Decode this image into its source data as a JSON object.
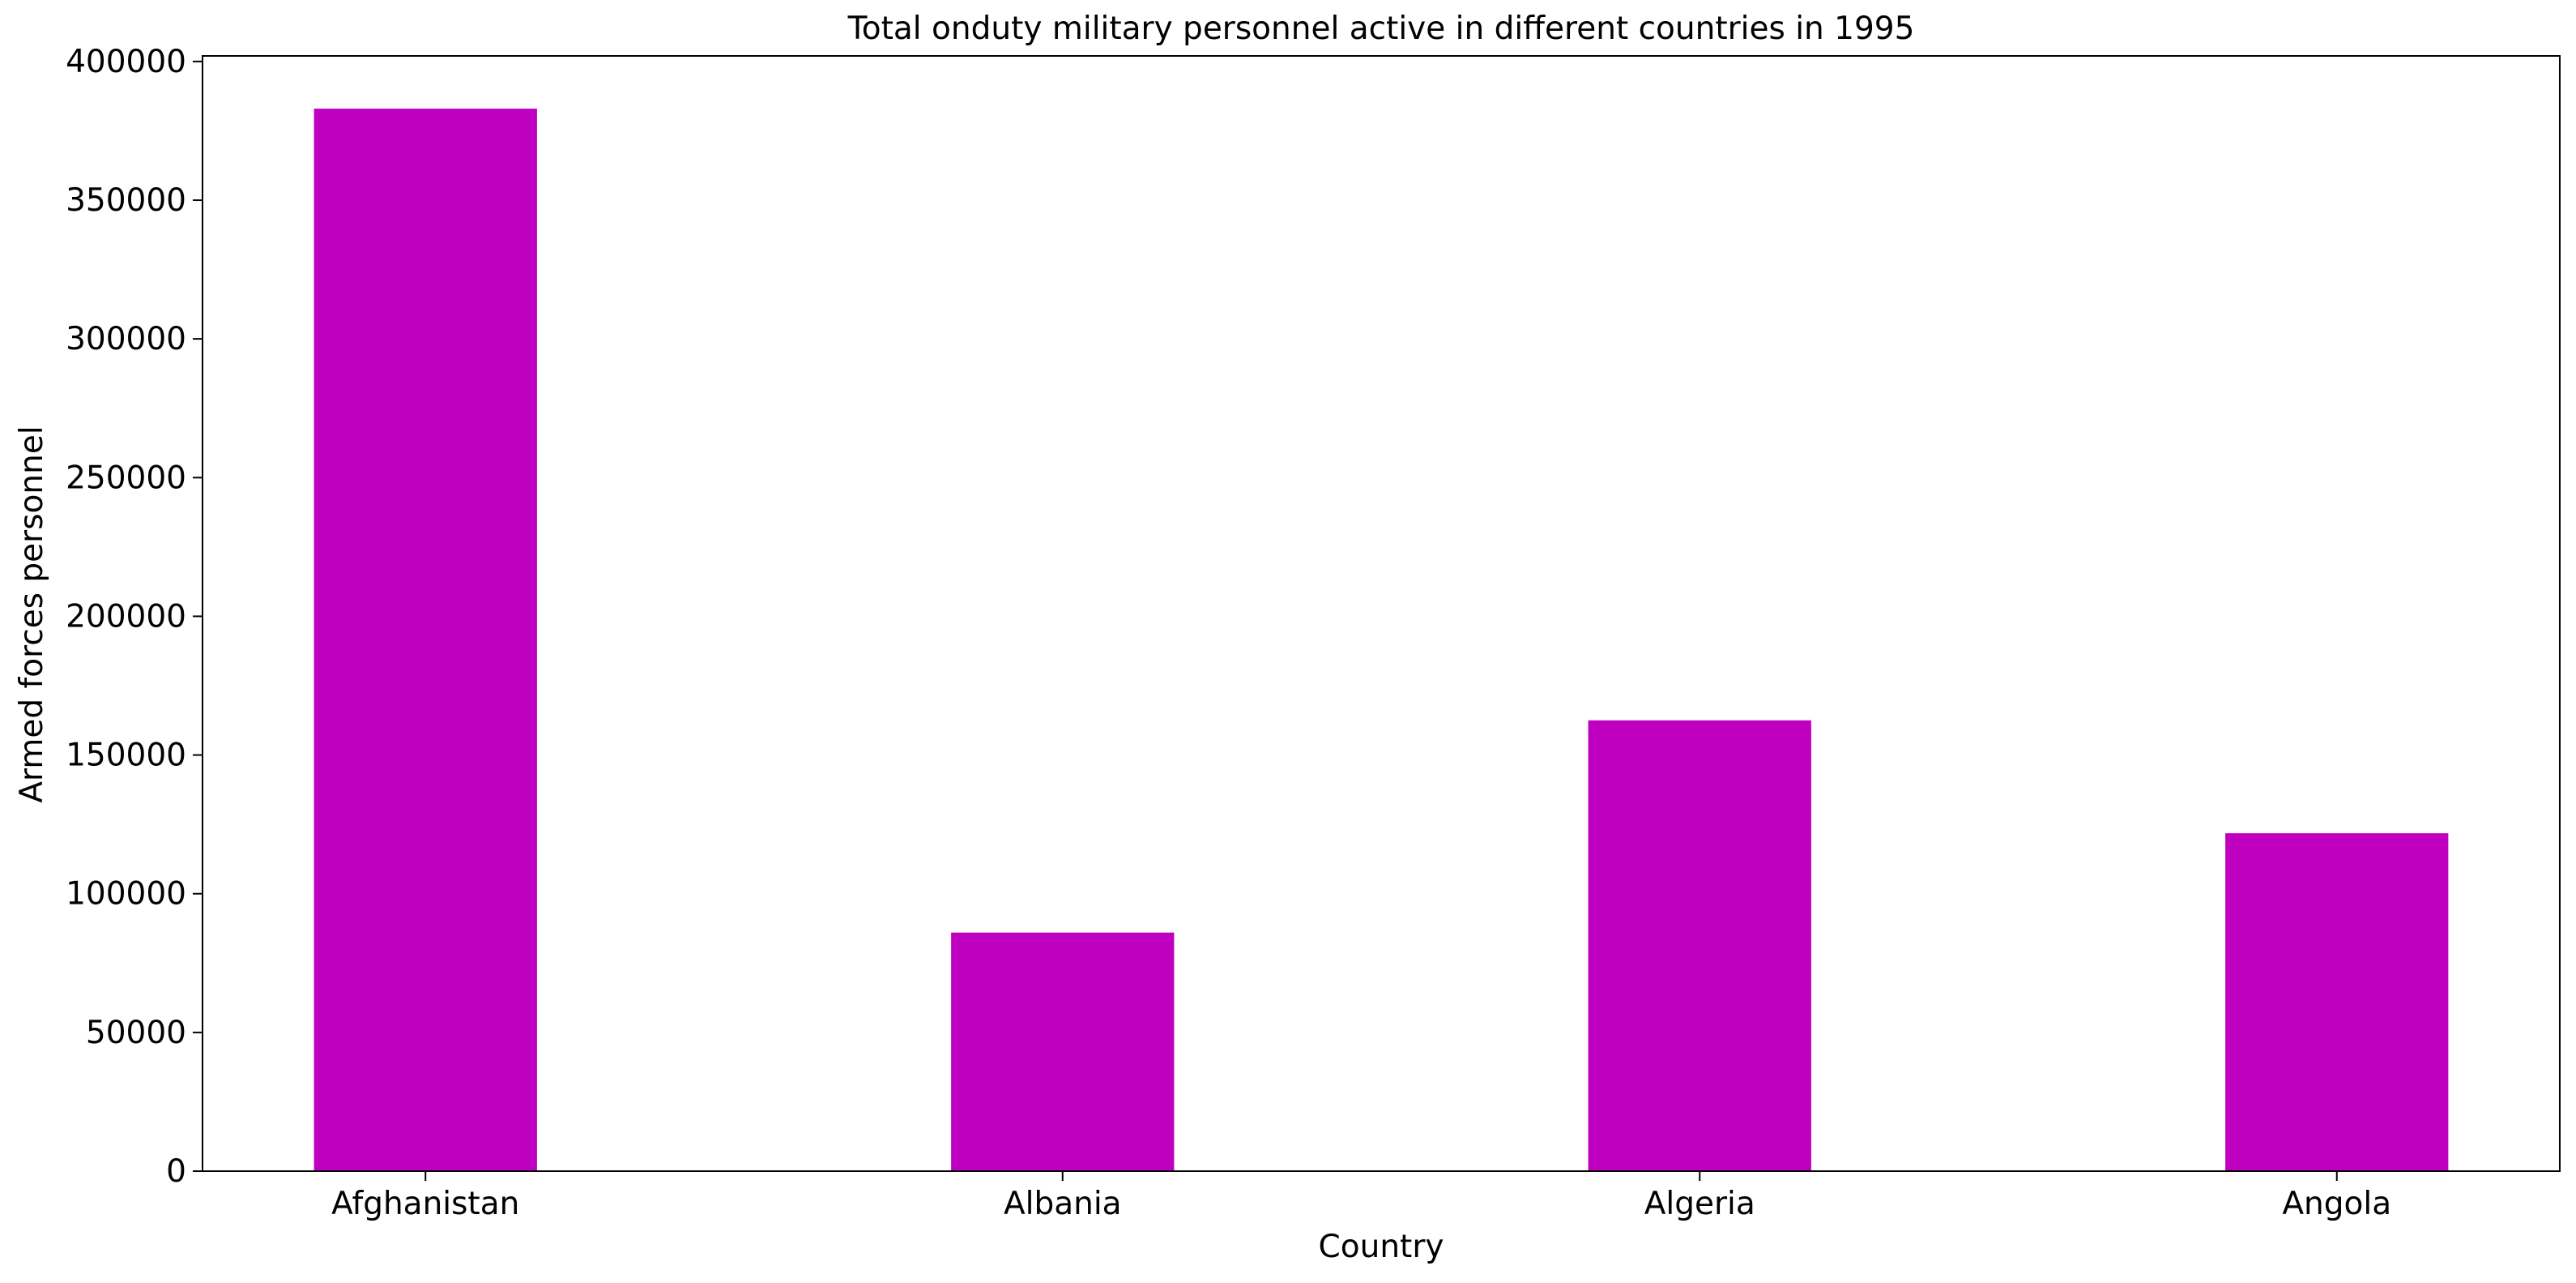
{
  "chart_data": {
    "type": "bar",
    "title": "Total onduty military personnel active in different countries in 1995",
    "xlabel": "Country",
    "ylabel": "Armed forces personnel",
    "categories": [
      "Afghanistan",
      "Albania",
      "Algeria",
      "Angola"
    ],
    "values": [
      383000,
      86000,
      162500,
      121800
    ],
    "ylim": [
      0,
      402000
    ],
    "yticks": [
      0,
      50000,
      100000,
      150000,
      200000,
      250000,
      300000,
      350000,
      400000
    ],
    "ytick_labels": [
      "0",
      "50000",
      "100000",
      "150000",
      "200000",
      "250000",
      "300000",
      "350000",
      "400000"
    ],
    "bar_color": "#bf00bf",
    "grid": false,
    "legend": "none"
  }
}
